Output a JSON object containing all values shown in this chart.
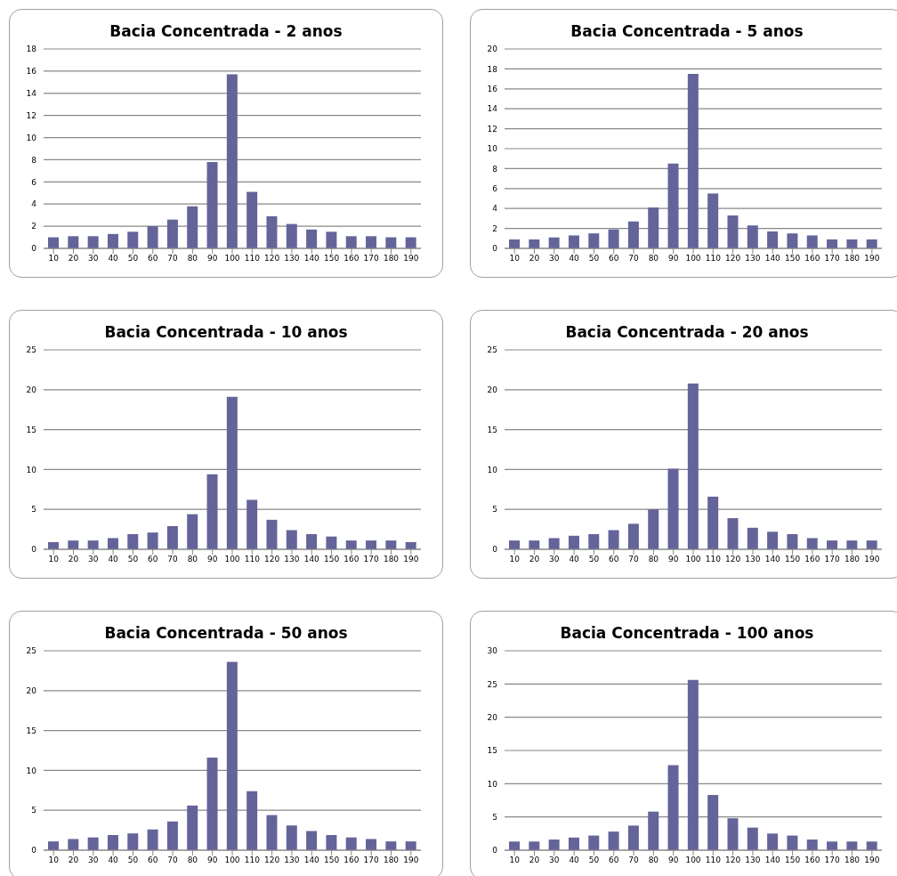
{
  "chart_data": [
    {
      "type": "bar",
      "title": "Bacia Concentrada - 2 anos",
      "categories": [
        "10",
        "20",
        "30",
        "40",
        "50",
        "60",
        "70",
        "80",
        "90",
        "100",
        "110",
        "120",
        "130",
        "140",
        "150",
        "160",
        "170",
        "180",
        "190"
      ],
      "values": [
        1.0,
        1.1,
        1.1,
        1.3,
        1.5,
        2.0,
        2.6,
        3.8,
        7.8,
        15.7,
        5.1,
        2.9,
        2.2,
        1.7,
        1.5,
        1.1,
        1.1,
        1.0,
        1.0
      ],
      "color": "#64649a",
      "ylim": [
        0,
        18
      ],
      "yticks": [
        0,
        2,
        4,
        6,
        8,
        10,
        12,
        14,
        16,
        18
      ],
      "grid": "y"
    },
    {
      "type": "bar",
      "title": "Bacia Concentrada - 5 anos",
      "categories": [
        "10",
        "20",
        "30",
        "40",
        "50",
        "60",
        "70",
        "80",
        "90",
        "100",
        "110",
        "120",
        "130",
        "140",
        "150",
        "160",
        "170",
        "180",
        "190"
      ],
      "values": [
        0.9,
        0.9,
        1.1,
        1.3,
        1.5,
        1.9,
        2.7,
        4.1,
        8.5,
        17.5,
        5.5,
        3.3,
        2.3,
        1.7,
        1.5,
        1.3,
        0.9,
        0.9,
        0.9
      ],
      "color": "#64649a",
      "ylim": [
        0,
        20
      ],
      "yticks": [
        0,
        2,
        4,
        6,
        8,
        10,
        12,
        14,
        16,
        18,
        20
      ],
      "grid": "y"
    },
    {
      "type": "bar",
      "title": "Bacia Concentrada - 10 anos",
      "categories": [
        "10",
        "20",
        "30",
        "40",
        "50",
        "60",
        "70",
        "80",
        "90",
        "100",
        "110",
        "120",
        "130",
        "140",
        "150",
        "160",
        "170",
        "180",
        "190"
      ],
      "values": [
        0.9,
        1.1,
        1.1,
        1.4,
        1.9,
        2.1,
        2.9,
        4.4,
        9.4,
        19.1,
        6.2,
        3.7,
        2.4,
        1.9,
        1.6,
        1.1,
        1.1,
        1.1,
        0.9
      ],
      "color": "#64649a",
      "ylim": [
        0,
        25
      ],
      "yticks": [
        0,
        5,
        10,
        15,
        20,
        25
      ],
      "grid": "y"
    },
    {
      "type": "bar",
      "title": "Bacia Concentrada - 20 anos",
      "categories": [
        "10",
        "20",
        "30",
        "40",
        "50",
        "60",
        "70",
        "80",
        "90",
        "100",
        "110",
        "120",
        "130",
        "140",
        "150",
        "160",
        "170",
        "180",
        "190"
      ],
      "values": [
        1.1,
        1.1,
        1.4,
        1.7,
        1.9,
        2.4,
        3.2,
        5.0,
        10.1,
        20.8,
        6.6,
        3.9,
        2.7,
        2.2,
        1.9,
        1.4,
        1.1,
        1.1,
        1.1
      ],
      "color": "#64649a",
      "ylim": [
        0,
        25
      ],
      "yticks": [
        0,
        5,
        10,
        15,
        20,
        25
      ],
      "grid": "y"
    },
    {
      "type": "bar",
      "title": "Bacia Concentrada - 50 anos",
      "categories": [
        "10",
        "20",
        "30",
        "40",
        "50",
        "60",
        "70",
        "80",
        "90",
        "100",
        "110",
        "120",
        "130",
        "140",
        "150",
        "160",
        "170",
        "180",
        "190"
      ],
      "values": [
        1.1,
        1.4,
        1.6,
        1.9,
        2.1,
        2.6,
        3.6,
        5.6,
        11.6,
        23.6,
        7.4,
        4.4,
        3.1,
        2.4,
        1.9,
        1.6,
        1.4,
        1.1,
        1.1
      ],
      "color": "#64649a",
      "ylim": [
        0,
        25
      ],
      "yticks": [
        0,
        5,
        10,
        15,
        20,
        25
      ],
      "grid": "y"
    },
    {
      "type": "bar",
      "title": "Bacia Concentrada - 100 anos",
      "categories": [
        "10",
        "20",
        "30",
        "40",
        "50",
        "60",
        "70",
        "80",
        "90",
        "100",
        "110",
        "120",
        "130",
        "140",
        "150",
        "160",
        "170",
        "180",
        "190"
      ],
      "values": [
        1.3,
        1.3,
        1.6,
        1.9,
        2.2,
        2.8,
        3.7,
        5.8,
        12.8,
        25.6,
        8.3,
        4.8,
        3.4,
        2.5,
        2.2,
        1.6,
        1.3,
        1.3,
        1.3
      ],
      "color": "#64649a",
      "ylim": [
        0,
        30
      ],
      "yticks": [
        0,
        5,
        10,
        15,
        20,
        25,
        30
      ],
      "grid": "y"
    }
  ]
}
